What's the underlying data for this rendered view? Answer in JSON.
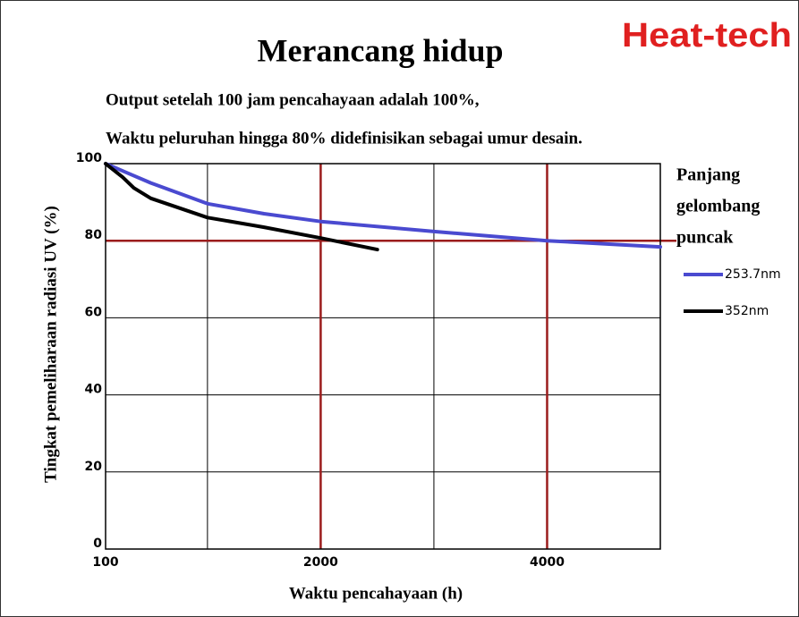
{
  "chart_data": {
    "type": "line",
    "title": "Merancang hidup",
    "brand": "Heat-tech",
    "subtitle": [
      "Output setelah 100 jam pencahayaan adalah 100%,",
      "Waktu peluruhan hingga 80% didefinisikan sebagai umur desain."
    ],
    "xlabel": "Waktu pencahayaan (h)",
    "ylabel": "Tingkat pemeliharaan radiasi UV (%)",
    "legend_title": [
      "Panjang",
      "gelombang",
      "puncak"
    ],
    "legend": "right",
    "xlim": [
      100,
      5000
    ],
    "xticks": [
      100,
      2000,
      4000
    ],
    "xgrid": [
      1000,
      2000,
      3000,
      4000
    ],
    "ylim": [
      0,
      100
    ],
    "yticks": [
      0,
      20,
      40,
      60,
      80,
      100
    ],
    "grid": true,
    "grid_color": "#000000",
    "highlight_color": "#9b1c1c",
    "highlight_x": [
      2000,
      4000
    ],
    "highlight_y": [
      80
    ],
    "series": [
      {
        "name": "253.7nm",
        "color": "#4a4ad0",
        "x": [
          100,
          300,
          500,
          1000,
          1500,
          2000,
          3000,
          4000,
          5000
        ],
        "values": [
          100,
          97.5,
          95,
          89.6,
          87,
          85,
          82.4,
          80,
          78.4
        ]
      },
      {
        "name": "352nm",
        "color": "#000000",
        "x": [
          100,
          250,
          350,
          500,
          1000,
          1500,
          2000,
          2500
        ],
        "values": [
          100,
          96.5,
          93.7,
          91,
          86,
          83.5,
          80.7,
          77.7
        ]
      }
    ]
  }
}
